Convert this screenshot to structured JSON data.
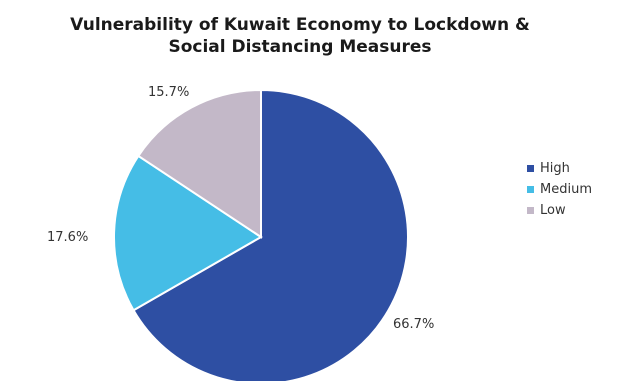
{
  "chart_data": {
    "type": "pie",
    "title_lines": [
      "Vulnerability of Kuwait Economy to Lockdown &",
      "Social Distancing Measures"
    ],
    "legend_position": "right",
    "slices": [
      {
        "name": "High",
        "legend_label": "High",
        "value": 66.7,
        "label": "66.7%",
        "color": "#2e4fa3"
      },
      {
        "name": "Medium",
        "legend_label": "Medium",
        "value": 17.6,
        "label": "17.6%",
        "color": "#45bde6"
      },
      {
        "name": "Low",
        "legend_label": "Low",
        "value": 15.7,
        "label": "15.7%",
        "color": "#c3b8c8"
      }
    ]
  }
}
